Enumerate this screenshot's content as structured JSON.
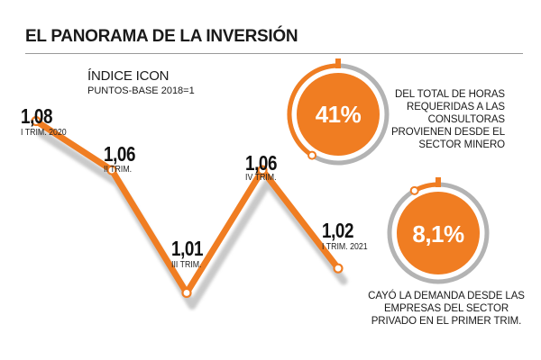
{
  "header": {
    "title": "EL PANORAMA DE LA INVERSIÓN"
  },
  "chart_data": {
    "type": "line",
    "title": "ÍNDICE ICON",
    "subtitle": "PUNTOS-BASE 2018=1",
    "categories": [
      "I TRIM. 2020",
      "II TRIM.",
      "III TRIM.",
      "IV TRIM.",
      "I TRIM. 2021"
    ],
    "values": [
      1.08,
      1.06,
      1.01,
      1.06,
      1.02
    ],
    "value_labels": [
      "1,08",
      "1,06",
      "1,01",
      "1,06",
      "1,02"
    ],
    "ylim": [
      0.99,
      1.1
    ],
    "grid": false,
    "line_color": "#f07d22",
    "shadow_color": "#c9c9c9"
  },
  "stats": [
    {
      "value": "41%",
      "text": "DEL TOTAL DE HORAS REQUERIDAS A LAS CONSULTORAS PROVIENEN DESDE EL SECTOR MINERO",
      "percent": 41
    },
    {
      "value": "8,1%",
      "text": "CAYÓ LA DEMANDA DESDE LAS EMPRESAS DEL SECTOR PRIVADO EN EL PRIMER TRIM.",
      "percent": 8.1
    }
  ],
  "colors": {
    "accent": "#f07d22",
    "ring_gray": "#b3b3b3",
    "text": "#1a1a1a"
  }
}
